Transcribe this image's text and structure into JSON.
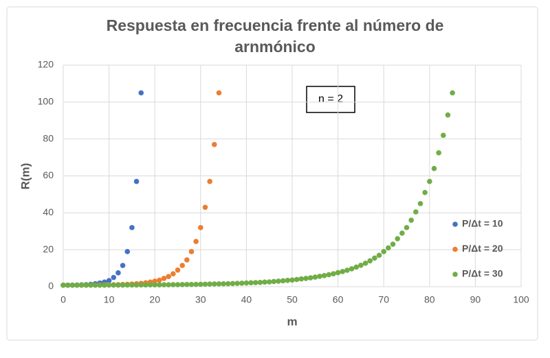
{
  "chart_data": {
    "type": "scatter",
    "title": "Respuesta en frecuencia frente al número de arnmónico",
    "xlabel": "m",
    "ylabel": "R(m)",
    "annotation": "n = 2",
    "xlim": [
      0,
      100
    ],
    "xticks": [
      0,
      10,
      20,
      30,
      40,
      50,
      60,
      70,
      80,
      90,
      100
    ],
    "ylim": [
      0,
      120
    ],
    "yticks": [
      0,
      20,
      40,
      60,
      80,
      100,
      120
    ],
    "grid": true,
    "legend": "right",
    "series": [
      {
        "name": "P/Δt = 10",
        "color": "#4472c4",
        "x": [
          0,
          1,
          2,
          3,
          4,
          5,
          6,
          7,
          8,
          9,
          10,
          11,
          12,
          13,
          14,
          15,
          16,
          17
        ],
        "values": [
          0.8,
          0.8,
          0.85,
          0.9,
          1,
          1.1,
          1.3,
          1.6,
          2,
          2.5,
          3.3,
          5,
          7.5,
          11.5,
          19,
          32,
          57,
          105
        ]
      },
      {
        "name": "P/Δt = 20",
        "color": "#ed7d31",
        "x": [
          0,
          1,
          2,
          3,
          4,
          5,
          6,
          7,
          8,
          9,
          10,
          11,
          12,
          13,
          14,
          15,
          16,
          17,
          18,
          19,
          20,
          21,
          22,
          23,
          24,
          25,
          26,
          27,
          28,
          29,
          30,
          31,
          32,
          33,
          34
        ],
        "values": [
          0.8,
          0.8,
          0.8,
          0.8,
          0.85,
          0.85,
          0.9,
          0.9,
          0.95,
          1,
          1,
          1.05,
          1.1,
          1.2,
          1.3,
          1.4,
          1.6,
          1.8,
          2.1,
          2.5,
          3,
          3.5,
          4.5,
          5.5,
          7,
          9,
          11.5,
          14.5,
          19,
          24.5,
          32,
          43,
          57,
          77,
          105
        ]
      },
      {
        "name": "P/Δt = 30",
        "color": "#70ad47",
        "x": [
          0,
          1,
          2,
          3,
          4,
          5,
          6,
          7,
          8,
          9,
          10,
          11,
          12,
          13,
          14,
          15,
          16,
          17,
          18,
          19,
          20,
          21,
          22,
          23,
          24,
          25,
          26,
          27,
          28,
          29,
          30,
          31,
          32,
          33,
          34,
          35,
          36,
          37,
          38,
          39,
          40,
          41,
          42,
          43,
          44,
          45,
          46,
          47,
          48,
          49,
          50,
          51,
          52,
          53,
          54,
          55,
          56,
          57,
          58,
          59,
          60,
          61,
          62,
          63,
          64,
          65,
          66,
          67,
          68,
          69,
          70,
          71,
          72,
          73,
          74,
          75,
          76,
          77,
          78,
          79,
          80,
          81,
          82,
          83,
          84,
          85
        ],
        "values": [
          0.8,
          0.8,
          0.8,
          0.8,
          0.8,
          0.8,
          0.8,
          0.8,
          0.8,
          0.8,
          0.85,
          0.85,
          0.85,
          0.85,
          0.9,
          0.9,
          0.9,
          0.95,
          0.95,
          1,
          1,
          1,
          1.05,
          1.05,
          1.1,
          1.1,
          1.15,
          1.2,
          1.2,
          1.25,
          1.3,
          1.35,
          1.4,
          1.45,
          1.5,
          1.55,
          1.6,
          1.7,
          1.8,
          1.9,
          2,
          2.1,
          2.2,
          2.3,
          2.5,
          2.6,
          2.8,
          3,
          3.2,
          3.4,
          3.6,
          3.9,
          4.2,
          4.5,
          4.8,
          5.2,
          5.6,
          6,
          6.5,
          7,
          7.6,
          8.2,
          8.9,
          9.7,
          10.6,
          11.6,
          12.7,
          14,
          15.5,
          17,
          19,
          21,
          23,
          26,
          29,
          32,
          36,
          40.5,
          45,
          51,
          57,
          64,
          72.5,
          82,
          93,
          105
        ]
      }
    ]
  }
}
